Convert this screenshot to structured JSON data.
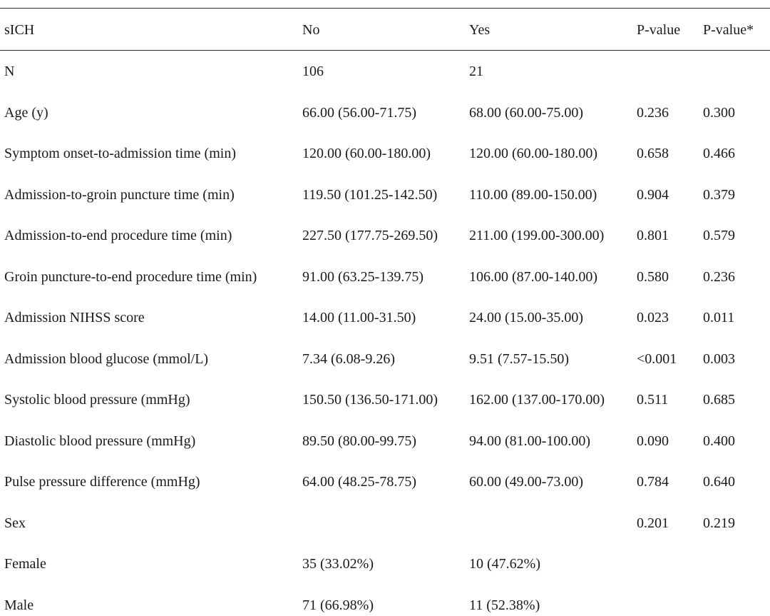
{
  "table": {
    "headers": [
      "sICH",
      "No",
      "Yes",
      "P-value",
      "P-value*"
    ],
    "rows": [
      [
        "N",
        "106",
        "21",
        "",
        ""
      ],
      [
        "Age (y)",
        "66.00 (56.00-71.75)",
        "68.00 (60.00-75.00)",
        "0.236",
        "0.300"
      ],
      [
        "Symptom onset-to-admission time (min)",
        "120.00 (60.00-180.00)",
        "120.00 (60.00-180.00)",
        "0.658",
        "0.466"
      ],
      [
        "Admission-to-groin puncture time (min)",
        "119.50 (101.25-142.50)",
        "110.00 (89.00-150.00)",
        "0.904",
        "0.379"
      ],
      [
        "Admission-to-end procedure time (min)",
        "227.50 (177.75-269.50)",
        "211.00 (199.00-300.00)",
        "0.801",
        "0.579"
      ],
      [
        "Groin puncture-to-end procedure time (min)",
        "91.00 (63.25-139.75)",
        "106.00 (87.00-140.00)",
        "0.580",
        "0.236"
      ],
      [
        "Admission NIHSS score",
        "14.00 (11.00-31.50)",
        "24.00 (15.00-35.00)",
        "0.023",
        "0.011"
      ],
      [
        "Admission blood glucose (mmol/L)",
        "7.34 (6.08-9.26)",
        "9.51 (7.57-15.50)",
        "<0.001",
        "0.003"
      ],
      [
        "Systolic blood pressure (mmHg)",
        "150.50 (136.50-171.00)",
        "162.00 (137.00-170.00)",
        "0.511",
        "0.685"
      ],
      [
        "Diastolic blood pressure (mmHg)",
        "89.50 (80.00-99.75)",
        "94.00 (81.00-100.00)",
        "0.090",
        "0.400"
      ],
      [
        "Pulse pressure difference (mmHg)",
        "64.00 (48.25-78.75)",
        "60.00 (49.00-73.00)",
        "0.784",
        "0.640"
      ],
      [
        "Sex",
        "",
        "",
        "0.201",
        "0.219"
      ],
      [
        "Female",
        "35 (33.02%)",
        "10 (47.62%)",
        "",
        ""
      ],
      [
        "Male",
        "71 (66.98%)",
        "11 (52.38%)",
        "",
        ""
      ]
    ]
  }
}
